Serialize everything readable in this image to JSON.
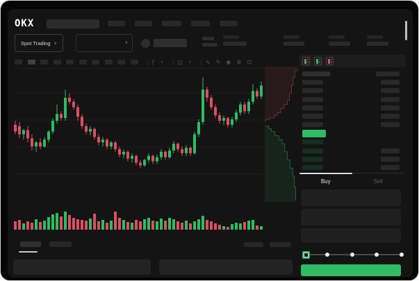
{
  "colors": {
    "green": "#2ebd63",
    "red": "#dd4f62",
    "card_bg": "#141414",
    "window_bg": "#060606",
    "placeholder": "#2b2b2b"
  },
  "header": {
    "logo_text": "OKX",
    "nav_placeholder_count": 5
  },
  "ticker": {
    "market_selector_label": "Spot Trading",
    "stats_placeholder_count": 4
  },
  "ui": {
    "chevron_down_glyph": "∨"
  },
  "toolbar": {
    "timeframe_placeholder_count": 10,
    "active_timeframe_index": 1,
    "icons": [
      {
        "name": "indicators-icon",
        "glyph": "ƒ"
      },
      {
        "name": "chevron-down-icon",
        "glyph": "∨"
      },
      {
        "name": "candle-style-icon",
        "glyph": "◫"
      },
      {
        "name": "chevron-down-icon",
        "glyph": "∨"
      },
      {
        "name": "line-tool-icon",
        "glyph": "∿"
      },
      {
        "name": "draw-tool-icon",
        "glyph": "✎"
      },
      {
        "name": "camera-icon",
        "glyph": "◉"
      },
      {
        "name": "settings-icon",
        "glyph": "⚙"
      },
      {
        "name": "fullscreen-icon",
        "glyph": "⊡"
      }
    ]
  },
  "orderbook": {
    "view_modes": [
      "combined-book",
      "bids-only",
      "asks-only"
    ],
    "ask_row_count": 6,
    "bid_row_count": 4,
    "highlight": "last-price-highlight"
  },
  "trade_panel": {
    "tabs": [
      {
        "label": "Buy",
        "active": true
      },
      {
        "label": "Sell",
        "active": false
      }
    ],
    "field_count": 3,
    "slider": {
      "value_percent": 0,
      "stop_count": 5
    },
    "submit_label": ""
  },
  "chart_data": {
    "type": "candlestick",
    "title": "",
    "value_range": [
      0,
      100
    ],
    "grid": true,
    "gridlines_y_values": [
      80.5,
      60.5,
      40.5,
      20.5
    ],
    "candles": [
      [
        57,
        60,
        50,
        52
      ],
      [
        56,
        59,
        47,
        50
      ],
      [
        50,
        54,
        46,
        53
      ],
      [
        53,
        56,
        44,
        47
      ],
      [
        47,
        50,
        38,
        41
      ],
      [
        41,
        45,
        37,
        44
      ],
      [
        44,
        47,
        39,
        41
      ],
      [
        41,
        48,
        40,
        46
      ],
      [
        46,
        53,
        44,
        52
      ],
      [
        52,
        62,
        50,
        60
      ],
      [
        60,
        72,
        58,
        65
      ],
      [
        65,
        67,
        60,
        62
      ],
      [
        62,
        83,
        60,
        77
      ],
      [
        77,
        80,
        72,
        74
      ],
      [
        74,
        76,
        68,
        70
      ],
      [
        70,
        72,
        60,
        63
      ],
      [
        63,
        65,
        54,
        56
      ],
      [
        56,
        58,
        50,
        52
      ],
      [
        52,
        56,
        49,
        54
      ],
      [
        54,
        55,
        46,
        48
      ],
      [
        48,
        50,
        42,
        44
      ],
      [
        44,
        48,
        41,
        46
      ],
      [
        46,
        47,
        39,
        41
      ],
      [
        41,
        45,
        39,
        44
      ],
      [
        44,
        45,
        37,
        39
      ],
      [
        39,
        41,
        33,
        35
      ],
      [
        35,
        39,
        32,
        37
      ],
      [
        37,
        38,
        30,
        32
      ],
      [
        32,
        36,
        29,
        34
      ],
      [
        34,
        35,
        27,
        29
      ],
      [
        29,
        31,
        25,
        27
      ],
      [
        27,
        32,
        26,
        31
      ],
      [
        31,
        36,
        29,
        34
      ],
      [
        34,
        35,
        28,
        30
      ],
      [
        30,
        35,
        28,
        33
      ],
      [
        33,
        39,
        31,
        37
      ],
      [
        37,
        38,
        31,
        33
      ],
      [
        33,
        40,
        32,
        38
      ],
      [
        38,
        45,
        36,
        43
      ],
      [
        43,
        44,
        37,
        39
      ],
      [
        39,
        41,
        34,
        36
      ],
      [
        36,
        42,
        34,
        40
      ],
      [
        40,
        41,
        34,
        36
      ],
      [
        36,
        52,
        35,
        50
      ],
      [
        50,
        61,
        48,
        59
      ],
      [
        59,
        92,
        57,
        83
      ],
      [
        83,
        85,
        74,
        77
      ],
      [
        77,
        79,
        68,
        70
      ],
      [
        70,
        72,
        62,
        64
      ],
      [
        64,
        66,
        58,
        60
      ],
      [
        60,
        64,
        57,
        62
      ],
      [
        62,
        63,
        55,
        57
      ],
      [
        57,
        63,
        55,
        61
      ],
      [
        61,
        68,
        59,
        66
      ],
      [
        66,
        74,
        64,
        72
      ],
      [
        72,
        74,
        65,
        67
      ],
      [
        67,
        76,
        65,
        74
      ],
      [
        74,
        87,
        72,
        82
      ],
      [
        82,
        84,
        76,
        78
      ],
      [
        78,
        89,
        76,
        86
      ]
    ],
    "volumes": [
      12,
      14,
      9,
      12,
      10,
      15,
      11,
      13,
      18,
      22,
      24,
      19,
      26,
      21,
      17,
      15,
      14,
      13,
      16,
      23,
      12,
      14,
      10,
      13,
      26,
      17,
      14,
      11,
      10,
      14,
      12,
      15,
      17,
      13,
      12,
      16,
      13,
      17,
      15,
      12,
      10,
      13,
      9,
      12,
      15,
      20,
      14,
      12,
      9,
      7,
      5,
      4,
      8,
      10,
      9,
      11,
      13,
      14,
      6,
      5
    ],
    "depth": {
      "asks": [
        [
          1,
          0.03
        ],
        [
          0.9,
          0.08
        ],
        [
          0.85,
          0.14
        ],
        [
          0.8,
          0.2
        ],
        [
          0.74,
          0.25
        ],
        [
          0.68,
          0.28
        ],
        [
          0.58,
          0.31
        ],
        [
          0.48,
          0.34
        ],
        [
          0.38,
          0.36
        ],
        [
          0.28,
          0.38
        ],
        [
          0.14,
          0.39
        ],
        [
          0.02,
          0.41
        ]
      ],
      "bids": [
        [
          0.02,
          0.44
        ],
        [
          0.12,
          0.46
        ],
        [
          0.2,
          0.48
        ],
        [
          0.3,
          0.51
        ],
        [
          0.42,
          0.54
        ],
        [
          0.52,
          0.57
        ],
        [
          0.6,
          0.63
        ],
        [
          0.68,
          0.69
        ],
        [
          0.76,
          0.75
        ],
        [
          0.84,
          0.81
        ],
        [
          0.89,
          0.89
        ],
        [
          0.93,
          0.985
        ]
      ]
    }
  }
}
